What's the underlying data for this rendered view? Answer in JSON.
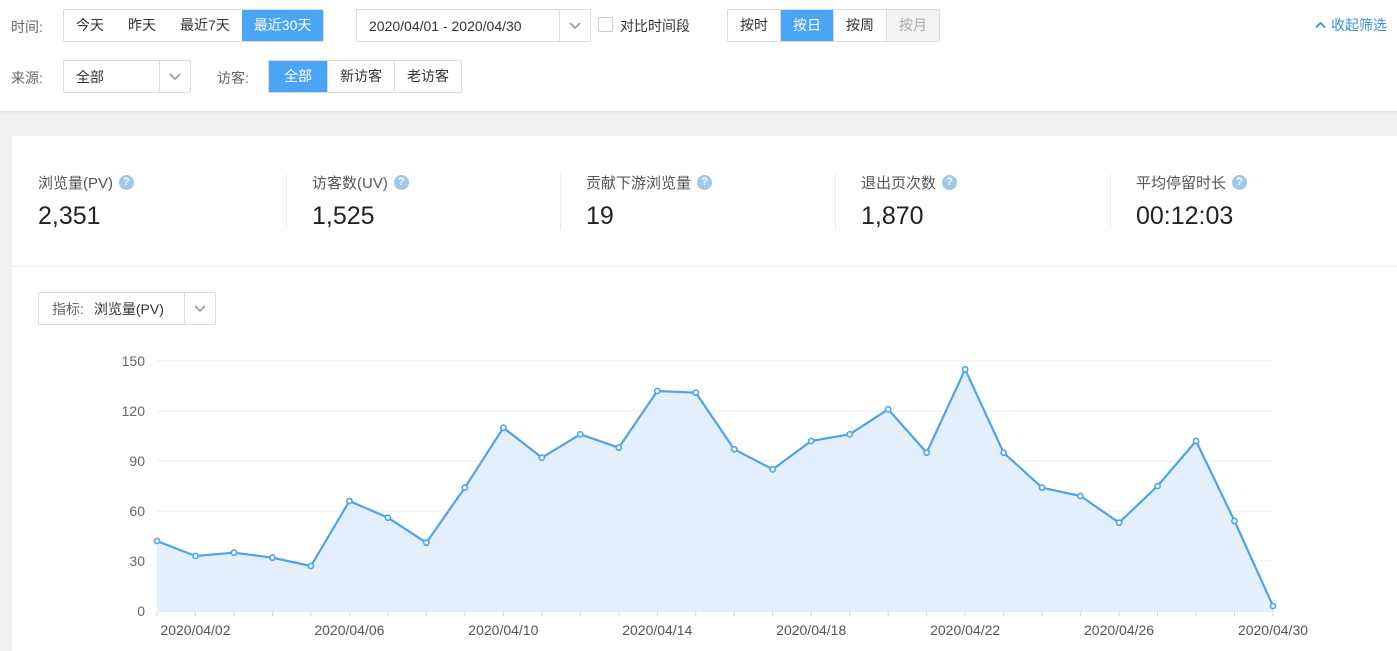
{
  "filters": {
    "time_label": "时间:",
    "time_buttons": [
      "今天",
      "昨天",
      "最近7天",
      "最近30天"
    ],
    "date_range": "2020/04/01 - 2020/04/30",
    "compare_label": "对比时间段",
    "granularity": [
      "按时",
      "按日",
      "按周",
      "按月"
    ],
    "collapse_label": "收起筛选",
    "source_label": "来源:",
    "source_value": "全部",
    "visitor_label": "访客:",
    "visitor_buttons": [
      "全部",
      "新访客",
      "老访客"
    ]
  },
  "kpis": [
    {
      "name": "浏览量(PV)",
      "value": "2,351"
    },
    {
      "name": "访客数(UV)",
      "value": "1,525"
    },
    {
      "name": "贡献下游浏览量",
      "value": "19"
    },
    {
      "name": "退出页次数",
      "value": "1,870"
    },
    {
      "name": "平均停留时长",
      "value": "00:12:03"
    }
  ],
  "metric_select": {
    "label": "指标:",
    "value": "浏览量(PV)"
  },
  "colors": {
    "accent": "#4ba5f6",
    "line": "#4da3ec",
    "area": "#e3f0fb"
  },
  "chart_data": {
    "type": "area",
    "title": "",
    "xlabel": "",
    "ylabel": "",
    "ylim": [
      0,
      150
    ],
    "yticks": [
      0,
      30,
      60,
      90,
      120,
      150
    ],
    "x": [
      "2020/04/01",
      "2020/04/02",
      "2020/04/03",
      "2020/04/04",
      "2020/04/05",
      "2020/04/06",
      "2020/04/07",
      "2020/04/08",
      "2020/04/09",
      "2020/04/10",
      "2020/04/11",
      "2020/04/12",
      "2020/04/13",
      "2020/04/14",
      "2020/04/15",
      "2020/04/16",
      "2020/04/17",
      "2020/04/18",
      "2020/04/19",
      "2020/04/20",
      "2020/04/21",
      "2020/04/22",
      "2020/04/23",
      "2020/04/24",
      "2020/04/25",
      "2020/04/26",
      "2020/04/27",
      "2020/04/28",
      "2020/04/29",
      "2020/04/30"
    ],
    "x_tick_labels": [
      "2020/04/02",
      "2020/04/06",
      "2020/04/10",
      "2020/04/14",
      "2020/04/18",
      "2020/04/22",
      "2020/04/26",
      "2020/04/30"
    ],
    "series": [
      {
        "name": "浏览量(PV)",
        "values": [
          42,
          33,
          35,
          32,
          27,
          66,
          56,
          41,
          74,
          110,
          92,
          106,
          98,
          132,
          131,
          97,
          85,
          102,
          106,
          121,
          95,
          145,
          95,
          74,
          69,
          53,
          75,
          102,
          54,
          3
        ]
      }
    ]
  }
}
